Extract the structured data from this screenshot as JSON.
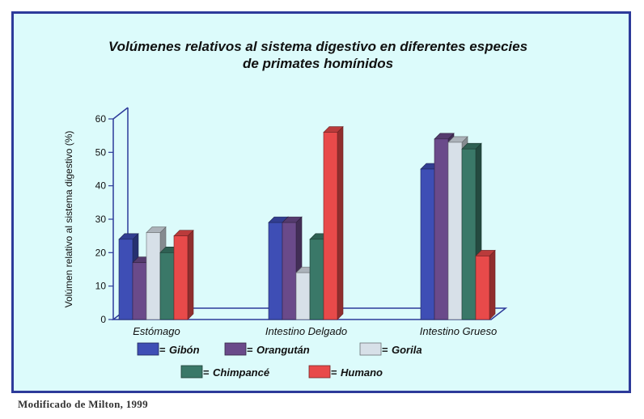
{
  "chart_data": {
    "type": "bar",
    "title": "Volúmenes relativos al sistema digestivo en diferentes especies",
    "title_line2": "de primates homínidos",
    "ylabel": "Volúmen relativo al sistema digestivo (%)",
    "xlabel": "",
    "ylim": [
      0,
      60
    ],
    "yticks": [
      0,
      10,
      20,
      30,
      40,
      50,
      60
    ],
    "categories": [
      "Estómago",
      "Intestino Delgado",
      "Intestino Grueso"
    ],
    "series": [
      {
        "name": "Gibón",
        "color": "#3e4eb5",
        "values": [
          24,
          29,
          45
        ]
      },
      {
        "name": "Orangután",
        "color": "#6a4a8a",
        "values": [
          17,
          29,
          54
        ]
      },
      {
        "name": "Gorila",
        "color": "#d7e0e8",
        "values": [
          26,
          14,
          53
        ]
      },
      {
        "name": "Chimpancé",
        "color": "#3a7868",
        "values": [
          20,
          24,
          51
        ]
      },
      {
        "name": "Humano",
        "color": "#e84a4a",
        "values": [
          25,
          56,
          19
        ]
      }
    ],
    "legend_position": "bottom",
    "legend_separator": "="
  },
  "source": "Modificado de Milton, 1999"
}
